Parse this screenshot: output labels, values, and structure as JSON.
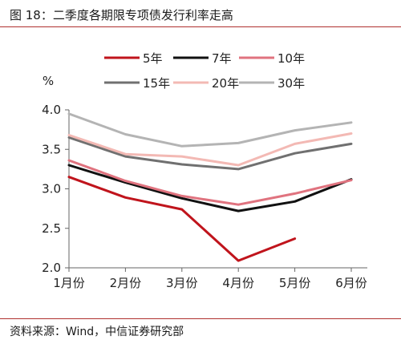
{
  "figure": {
    "title": "图 18：二季度各期限专项债发行利率走高",
    "source": "资料来源：Wind，中信证券研究部"
  },
  "chart_data": {
    "type": "line",
    "title": "二季度各期限专项债发行利率走高",
    "ylabel": "%",
    "xlabel": "",
    "categories": [
      "1月份",
      "2月份",
      "3月份",
      "4月份",
      "5月份",
      "6月份"
    ],
    "ylim": [
      2.0,
      4.0
    ],
    "yticks": [
      "2.0",
      "2.5",
      "3.0",
      "3.5",
      "4.0"
    ],
    "grid": false,
    "legend_position": "top-center",
    "series": [
      {
        "name": "5年",
        "color": "#c0141c",
        "values": [
          3.15,
          2.89,
          2.74,
          2.09,
          2.37,
          null
        ]
      },
      {
        "name": "7年",
        "color": "#111111",
        "values": [
          3.3,
          3.08,
          2.88,
          2.72,
          2.84,
          3.12
        ]
      },
      {
        "name": "10年",
        "color": "#e0737f",
        "values": [
          3.36,
          3.1,
          2.91,
          2.8,
          2.94,
          3.11
        ]
      },
      {
        "name": "15年",
        "color": "#707070",
        "values": [
          3.65,
          3.41,
          3.31,
          3.25,
          3.45,
          3.57
        ]
      },
      {
        "name": "20年",
        "color": "#f3b9b4",
        "values": [
          3.68,
          3.44,
          3.41,
          3.3,
          3.57,
          3.7
        ]
      },
      {
        "name": "30年",
        "color": "#b4b4b4",
        "values": [
          3.95,
          3.69,
          3.54,
          3.58,
          3.74,
          3.84
        ]
      }
    ]
  }
}
